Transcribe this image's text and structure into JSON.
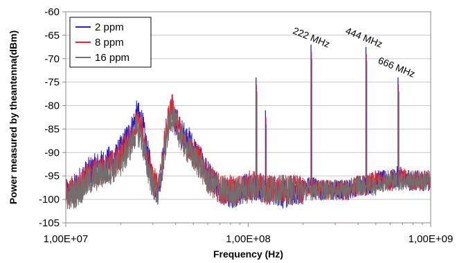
{
  "chart_data": {
    "type": "line",
    "xlabel": "Frequency (Hz)",
    "ylabel": "Power measured by theantenna(dBm)",
    "x_scale": "log",
    "xlim": [
      10000000,
      1000000000
    ],
    "ylim": [
      -105,
      -60
    ],
    "x_ticks": [
      {
        "value": 10000000,
        "label": "1,00E+07"
      },
      {
        "value": 100000000,
        "label": "1,00E+08"
      },
      {
        "value": 1000000000,
        "label": "1,00E+09"
      }
    ],
    "y_ticks": [
      {
        "value": -60,
        "label": "-60"
      },
      {
        "value": -65,
        "label": "-65"
      },
      {
        "value": -70,
        "label": "-70"
      },
      {
        "value": -75,
        "label": "-75"
      },
      {
        "value": -80,
        "label": "-80"
      },
      {
        "value": -85,
        "label": "-85"
      },
      {
        "value": -90,
        "label": "-90"
      },
      {
        "value": -95,
        "label": "-95"
      },
      {
        "value": -100,
        "label": "-100"
      },
      {
        "value": -105,
        "label": "-105"
      }
    ],
    "grid": {
      "x": false,
      "y": true
    },
    "legend": "top-left",
    "series": [
      {
        "name": "2 ppm",
        "color": "#1f1fd6",
        "x": [
          10000000,
          11000000,
          12000000,
          13500000,
          15000000,
          17000000,
          19000000,
          21000000,
          23000000,
          24500000,
          26000000,
          28000000,
          30000000,
          32000000,
          34000000,
          36000000,
          38000000,
          40000000,
          43000000,
          46000000,
          50000000,
          55000000,
          60000000,
          66000000,
          72000000,
          80000000,
          90000000,
          100000000,
          111000000,
          125000000,
          140000000,
          160000000,
          180000000,
          200000000,
          222000000,
          250000000,
          300000000,
          350000000,
          400000000,
          444000000,
          500000000,
          560000000,
          600000000,
          666000000,
          750000000,
          850000000,
          1000000000
        ],
        "y": [
          -99,
          -98,
          -96,
          -94,
          -93,
          -92,
          -91,
          -88,
          -85,
          -82,
          -83,
          -90,
          -96,
          -98,
          -92,
          -85,
          -81,
          -83,
          -86,
          -87,
          -89,
          -92,
          -95,
          -97,
          -98,
          -99,
          -98,
          -97,
          -97,
          -98,
          -98,
          -99,
          -98,
          -98,
          -97,
          -98,
          -98,
          -98,
          -97,
          -97,
          -96,
          -96,
          -96,
          -95,
          -96,
          -96,
          -96
        ]
      },
      {
        "name": "8 ppm",
        "color": "#e8232a",
        "x": [
          10000000,
          11000000,
          12000000,
          13500000,
          15000000,
          17000000,
          19000000,
          21000000,
          23000000,
          24500000,
          26000000,
          28000000,
          30000000,
          32000000,
          34000000,
          36000000,
          38000000,
          40000000,
          43000000,
          46000000,
          50000000,
          55000000,
          60000000,
          66000000,
          72000000,
          80000000,
          90000000,
          100000000,
          111000000,
          125000000,
          140000000,
          160000000,
          180000000,
          200000000,
          222000000,
          250000000,
          300000000,
          350000000,
          400000000,
          444000000,
          500000000,
          560000000,
          600000000,
          666000000,
          750000000,
          850000000,
          1000000000
        ],
        "y": [
          -99,
          -98,
          -97,
          -95,
          -94,
          -93,
          -92,
          -89,
          -86,
          -84,
          -85,
          -91,
          -96,
          -97,
          -91,
          -84,
          -80,
          -83,
          -86,
          -88,
          -90,
          -92,
          -95,
          -97,
          -98,
          -98,
          -98,
          -97,
          -97,
          -98,
          -98,
          -98,
          -98,
          -98,
          -97,
          -98,
          -98,
          -98,
          -97,
          -97,
          -96,
          -96,
          -96,
          -95,
          -96,
          -96,
          -96
        ]
      },
      {
        "name": "16 ppm",
        "color": "#707070",
        "x": [
          10000000,
          11000000,
          12000000,
          13500000,
          15000000,
          17000000,
          19000000,
          21000000,
          23000000,
          24500000,
          26000000,
          28000000,
          30000000,
          32000000,
          34000000,
          36000000,
          38000000,
          40000000,
          43000000,
          46000000,
          50000000,
          55000000,
          60000000,
          66000000,
          72000000,
          80000000,
          90000000,
          100000000,
          111000000,
          125000000,
          140000000,
          160000000,
          180000000,
          200000000,
          222000000,
          250000000,
          300000000,
          350000000,
          400000000,
          444000000,
          500000000,
          560000000,
          600000000,
          666000000,
          750000000,
          850000000,
          1000000000
        ],
        "y": [
          -100,
          -99,
          -98,
          -96,
          -95,
          -94,
          -93,
          -91,
          -88,
          -85,
          -87,
          -93,
          -97,
          -99,
          -93,
          -86,
          -82,
          -84,
          -87,
          -89,
          -91,
          -93,
          -96,
          -97,
          -98,
          -99,
          -98,
          -98,
          -97,
          -98,
          -98,
          -98,
          -98,
          -98,
          -98,
          -98,
          -98,
          -98,
          -97,
          -97,
          -97,
          -96,
          -96,
          -96,
          -96,
          -96,
          -96
        ]
      }
    ],
    "peaks": [
      {
        "x": 111000000,
        "y": -74
      },
      {
        "x": 125000000,
        "y": -81
      },
      {
        "x": 222000000,
        "y": -67
      },
      {
        "x": 444000000,
        "y": -67.5
      },
      {
        "x": 666000000,
        "y": -74
      }
    ],
    "annotations": [
      {
        "text": "222 MHz",
        "x": 222000000
      },
      {
        "text": "444 MHz",
        "x": 444000000
      },
      {
        "text": "666 MHz",
        "x": 666000000
      }
    ]
  }
}
